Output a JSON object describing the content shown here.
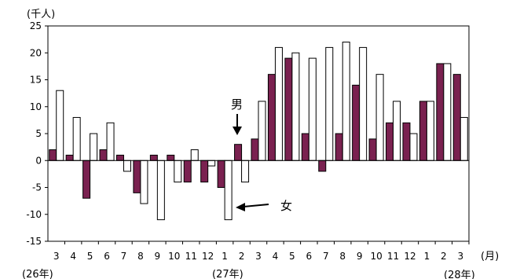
{
  "chart_data": {
    "type": "bar",
    "ylabel": "(千人)",
    "x_unit": "(月)",
    "ylim": [
      -15,
      25
    ],
    "yticks": [
      25,
      20,
      15,
      10,
      5,
      0,
      -5,
      -10,
      -15
    ],
    "categories": [
      "3",
      "4",
      "5",
      "6",
      "7",
      "8",
      "9",
      "10",
      "11",
      "12",
      "1",
      "2",
      "3",
      "4",
      "5",
      "6",
      "7",
      "8",
      "9",
      "10",
      "11",
      "12",
      "1",
      "2",
      "3"
    ],
    "year_labels": [
      "(26年)",
      "(27年)",
      "(28年)"
    ],
    "series": [
      {
        "name": "男",
        "color": "#7a2150",
        "values": [
          2,
          1,
          -7,
          2,
          1,
          -6,
          1,
          1,
          -4,
          -4,
          -5,
          3,
          4,
          16,
          19,
          5,
          -2,
          5,
          14,
          4,
          7,
          7,
          11,
          18,
          16
        ]
      },
      {
        "name": "女",
        "color": "#ffffff",
        "values": [
          13,
          8,
          5,
          7,
          -2,
          -8,
          -11,
          -4,
          2,
          -1,
          -11,
          -4,
          11,
          21,
          20,
          19,
          21,
          22,
          21,
          16,
          11,
          5,
          11,
          18,
          8
        ]
      }
    ],
    "annotations": [
      {
        "text": "男",
        "series": 0,
        "category_index": 11
      },
      {
        "text": "女",
        "series": 1,
        "category_index": 10
      }
    ]
  }
}
